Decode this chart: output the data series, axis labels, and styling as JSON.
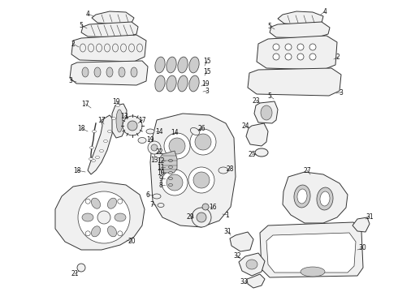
{
  "background_color": "#ffffff",
  "line_color": "#333333",
  "label_color": "#111111",
  "line_width": 0.7,
  "label_font_size": 5.5,
  "fig_width": 4.9,
  "fig_height": 3.6,
  "dpi": 100
}
